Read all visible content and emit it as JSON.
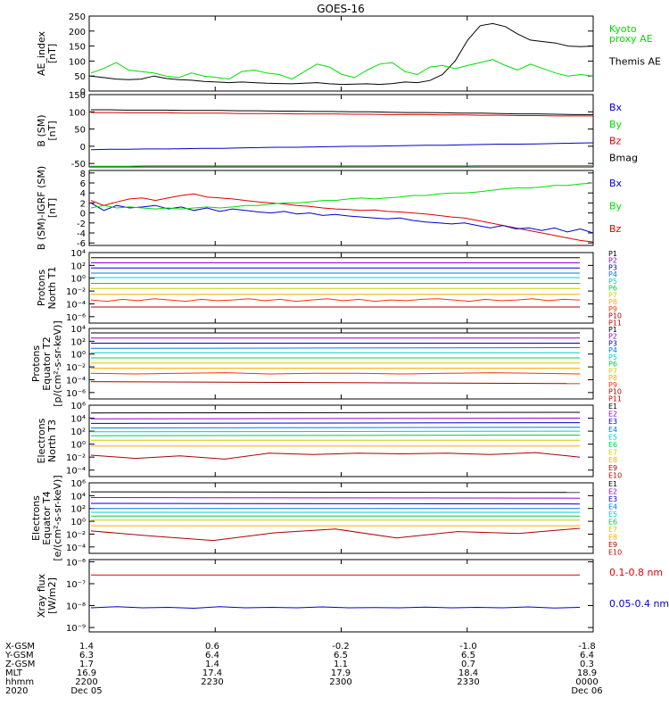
{
  "title": "GOES-16",
  "colors": {
    "black": "#000000",
    "green": "#00dd00",
    "blue": "#0000cc",
    "red": "#dd0000",
    "cyan": "#00bbee",
    "purple": "#9900cc",
    "navy": "#000080",
    "teal": "#00cccc",
    "lime": "#66ee00",
    "yellow": "#eecc00",
    "orange": "#ff9900",
    "darkred": "#aa0000"
  },
  "chart_data": [
    {
      "type": "line",
      "id": "ae",
      "ylabel": "AE_index\n[nT]",
      "yticks": [
        "250",
        "200",
        "150",
        "100",
        "50",
        "0"
      ],
      "ylim": [
        0,
        250
      ],
      "legend": [
        {
          "name": "Kyoto\nproxy AE",
          "color": "#00dd00"
        },
        {
          "name": "Themis AE",
          "color": "#000000"
        }
      ],
      "series": [
        {
          "name": "Themis AE",
          "color": "#000000",
          "values": [
            50,
            45,
            40,
            38,
            40,
            50,
            42,
            38,
            36,
            32,
            30,
            28,
            30,
            28,
            26,
            25,
            24,
            26,
            28,
            24,
            22,
            23,
            24,
            22,
            25,
            30,
            28,
            35,
            55,
            100,
            170,
            218,
            225,
            215,
            190,
            170,
            165,
            160,
            150,
            148,
            150
          ]
        },
        {
          "name": "Kyoto proxy AE",
          "color": "#00dd00",
          "values": [
            60,
            75,
            95,
            70,
            65,
            60,
            50,
            45,
            60,
            50,
            45,
            40,
            65,
            70,
            60,
            55,
            40,
            65,
            90,
            80,
            55,
            45,
            70,
            90,
            95,
            65,
            55,
            80,
            85,
            75,
            85,
            95,
            105,
            85,
            70,
            90,
            75,
            60,
            50,
            55,
            50
          ]
        }
      ]
    },
    {
      "type": "line",
      "id": "bsm",
      "ylabel": "B (SM)\n[nT]",
      "yticks": [
        "150",
        "100",
        "50",
        "0",
        "-50"
      ],
      "ylim": [
        -60,
        150
      ],
      "legend": [
        {
          "name": "Bx",
          "color": "#0000cc"
        },
        {
          "name": "By",
          "color": "#00dd00"
        },
        {
          "name": "Bz",
          "color": "#dd0000"
        },
        {
          "name": "Bmag",
          "color": "#000000"
        }
      ],
      "series": [
        {
          "name": "Bmag",
          "color": "#000000",
          "values": [
            106,
            106,
            105,
            105,
            105,
            104,
            104,
            104,
            103,
            103,
            102,
            102,
            101,
            101,
            100,
            100,
            99,
            98,
            98,
            97,
            96,
            96,
            95,
            94,
            94,
            93,
            92,
            92
          ]
        },
        {
          "name": "Bz",
          "color": "#dd0000",
          "values": [
            98,
            98,
            97,
            97,
            97,
            96,
            96,
            96,
            95,
            95,
            95,
            94,
            94,
            94,
            93,
            93,
            92,
            92,
            92,
            91,
            91,
            90,
            90,
            89,
            89,
            88,
            88,
            88
          ]
        },
        {
          "name": "Bx",
          "color": "#0000cc",
          "values": [
            -10,
            -9,
            -9,
            -8,
            -8,
            -7,
            -6,
            -6,
            -5,
            -4,
            -3,
            -3,
            -2,
            -1,
            0,
            0,
            1,
            2,
            3,
            3,
            4,
            5,
            6,
            6,
            7,
            8,
            9,
            10
          ]
        },
        {
          "name": "By",
          "color": "#00dd00",
          "values": [
            -58,
            -58,
            -58,
            -57,
            -57,
            -57,
            -57,
            -57,
            -57,
            -57,
            -57,
            -57,
            -57,
            -57,
            -57,
            -57,
            -57,
            -57,
            -57,
            -57,
            -57,
            -56,
            -56,
            -56,
            -56,
            -56,
            -56,
            -56
          ]
        }
      ]
    },
    {
      "type": "line",
      "id": "bdiff",
      "ylabel": "B (SM)-IGRF (SM)\n[nT]",
      "yticks": [
        "8",
        "6",
        "4",
        "2",
        "0",
        "-2",
        "-4",
        "-6"
      ],
      "ylim": [
        -6.5,
        8.5
      ],
      "legend": [
        {
          "name": "Bx",
          "color": "#0000cc"
        },
        {
          "name": "By",
          "color": "#00dd00"
        },
        {
          "name": "Bz",
          "color": "#dd0000"
        }
      ],
      "series": [
        {
          "name": "Bz",
          "color": "#dd0000",
          "values": [
            2.5,
            1.5,
            2.2,
            2.8,
            3.0,
            2.5,
            3.0,
            3.5,
            3.8,
            3.2,
            3.0,
            2.8,
            2.5,
            2.2,
            2.0,
            1.8,
            1.5,
            1.3,
            1.0,
            0.8,
            0.7,
            0.5,
            0.6,
            0.3,
            0.2,
            0.0,
            -0.2,
            -0.5,
            -0.8,
            -1.0,
            -1.5,
            -2.0,
            -2.5,
            -3.0,
            -3.5,
            -4.0,
            -4.5,
            -5.0,
            -5.5,
            -5.8
          ]
        },
        {
          "name": "Bx",
          "color": "#0000cc",
          "values": [
            2.0,
            0.5,
            1.5,
            1.0,
            1.2,
            1.5,
            0.8,
            1.2,
            0.5,
            1.0,
            0.3,
            0.8,
            0.5,
            0.2,
            0.0,
            0.3,
            -0.2,
            0.0,
            -0.5,
            -0.3,
            -0.6,
            -0.8,
            -1.0,
            -1.2,
            -1.0,
            -1.5,
            -1.8,
            -2.0,
            -2.2,
            -2.0,
            -2.5,
            -3.0,
            -2.5,
            -3.2,
            -3.0,
            -3.5,
            -3.0,
            -3.8,
            -3.2,
            -4.0
          ]
        },
        {
          "name": "By",
          "color": "#00dd00",
          "values": [
            1.0,
            1.5,
            1.0,
            1.2,
            1.0,
            0.8,
            1.0,
            0.8,
            1.0,
            1.2,
            1.0,
            1.2,
            1.5,
            1.5,
            1.8,
            2.0,
            2.0,
            2.2,
            2.5,
            2.5,
            2.8,
            3.0,
            2.8,
            3.0,
            3.2,
            3.5,
            3.5,
            3.8,
            4.0,
            4.0,
            4.2,
            4.5,
            4.8,
            5.0,
            5.0,
            5.2,
            5.5,
            5.5,
            5.8,
            6.0
          ]
        }
      ]
    },
    {
      "type": "line",
      "id": "p_north",
      "log": true,
      "ylabel": "Protons\nNorth T1",
      "yticks": [
        "10⁴",
        "10²",
        "10⁰",
        "10⁻²",
        "10⁻⁴",
        "10⁻⁶"
      ],
      "ylim": [
        -7,
        4
      ],
      "legend": [
        "P1",
        "P2",
        "P3",
        "P4",
        "P5",
        "P6",
        "P7",
        "P8",
        "P9",
        "P10",
        "P11"
      ],
      "series": [
        {
          "name": "P1",
          "color": "#000000",
          "log_values": [
            3.2,
            3.2
          ]
        },
        {
          "name": "P2",
          "color": "#9900cc",
          "log_values": [
            2.4,
            2.4
          ]
        },
        {
          "name": "P3",
          "color": "#0000cc",
          "log_values": [
            1.6,
            1.6
          ]
        },
        {
          "name": "P4",
          "color": "#0077ee",
          "log_values": [
            0.8,
            0.8
          ]
        },
        {
          "name": "P5",
          "color": "#00cccc",
          "log_values": [
            0.1,
            0.1
          ]
        },
        {
          "name": "P6",
          "color": "#00cc44",
          "log_values": [
            -0.8,
            -0.8
          ]
        },
        {
          "name": "P7",
          "color": "#cccc00",
          "log_values": [
            -1.6,
            -1.6
          ]
        },
        {
          "name": "P8",
          "color": "#ffaa00",
          "log_values": [
            -2.5,
            -2.5
          ]
        },
        {
          "name": "P9",
          "color": "#ff3300",
          "log_values": [
            -3.4,
            -3.6,
            -3.3,
            -3.5,
            -3.2,
            -3.4,
            -3.6,
            -3.3,
            -3.5,
            -3.4,
            -3.2,
            -3.5,
            -3.3,
            -3.6,
            -3.4,
            -3.2,
            -3.5,
            -3.3,
            -3.6,
            -3.4,
            -3.5,
            -3.3,
            -3.2,
            -3.4,
            -3.6,
            -3.3,
            -3.5,
            -3.4,
            -3.2,
            -3.5,
            -3.3,
            -3.4
          ]
        },
        {
          "name": "P10",
          "color": "#aa0000",
          "log_values": [
            -4.5,
            -4.5
          ]
        }
      ]
    },
    {
      "type": "line",
      "id": "p_equator",
      "log": true,
      "ylabel": "Protons\nEquator T2\n[p/(cm²-s-sr-keV)]",
      "yticks": [
        "10⁴",
        "10²",
        "10⁰",
        "10⁻²",
        "10⁻⁴",
        "10⁻⁶"
      ],
      "ylim": [
        -7,
        4
      ],
      "legend": [
        "P1",
        "P2",
        "P3",
        "P4",
        "P5",
        "P6",
        "P7",
        "P8",
        "P9",
        "P10",
        "P11"
      ],
      "series": [
        {
          "name": "P1",
          "color": "#000000",
          "log_values": [
            3.3,
            3.3
          ]
        },
        {
          "name": "P2",
          "color": "#9900cc",
          "log_values": [
            2.5,
            2.5
          ]
        },
        {
          "name": "P3",
          "color": "#0000cc",
          "log_values": [
            1.7,
            1.7
          ]
        },
        {
          "name": "P4",
          "color": "#0077ee",
          "log_values": [
            0.9,
            1.0
          ]
        },
        {
          "name": "P5",
          "color": "#00cccc",
          "log_values": [
            0.2,
            0.2
          ]
        },
        {
          "name": "P6",
          "color": "#00cc44",
          "log_values": [
            -0.6,
            -0.6
          ]
        },
        {
          "name": "P7",
          "color": "#cccc00",
          "log_values": [
            -1.4,
            -1.4
          ]
        },
        {
          "name": "P8",
          "color": "#ffaa00",
          "log_values": [
            -2.2,
            -2.2
          ]
        },
        {
          "name": "P9",
          "color": "#ff3300",
          "log_values": [
            -3.0,
            -3.1,
            -3.0,
            -2.9,
            -3.1,
            -3.0,
            -3.0,
            -3.1,
            -3.0,
            -2.9,
            -3.0,
            -3.1
          ]
        },
        {
          "name": "P10",
          "color": "#aa0000",
          "log_values": [
            -4.3,
            -4.6
          ]
        }
      ]
    },
    {
      "type": "line",
      "id": "e_north",
      "log": true,
      "ylabel": "Electrons\nNorth T3",
      "yticks": [
        "10⁶",
        "10⁴",
        "10²",
        "10⁰",
        "10⁻²",
        "10⁻⁴"
      ],
      "ylim": [
        -5,
        6
      ],
      "legend": [
        "E1",
        "E2",
        "E3",
        "E4",
        "E5",
        "E6",
        "E7",
        "E8",
        "E9",
        "E10"
      ],
      "series": [
        {
          "name": "E1",
          "color": "#000000",
          "log_values": [
            4.8,
            4.9
          ]
        },
        {
          "name": "E2",
          "color": "#9900cc",
          "log_values": [
            3.9,
            4.0
          ]
        },
        {
          "name": "E3",
          "color": "#0000cc",
          "log_values": [
            3.2,
            3.3
          ]
        },
        {
          "name": "E4",
          "color": "#0077ee",
          "log_values": [
            2.5,
            2.6
          ]
        },
        {
          "name": "E5",
          "color": "#00cccc",
          "log_values": [
            1.9,
            2.0
          ]
        },
        {
          "name": "E6",
          "color": "#00cc44",
          "log_values": [
            1.3,
            1.4
          ]
        },
        {
          "name": "E7",
          "color": "#cccc00",
          "log_values": [
            0.6,
            0.6
          ]
        },
        {
          "name": "E8",
          "color": "#ffaa00",
          "log_values": [
            -0.3,
            -0.3
          ]
        },
        {
          "name": "E9",
          "color": "#aa0000",
          "log_values": [
            -1.7,
            -2.2,
            -1.8,
            -2.3,
            -1.4,
            -1.6,
            -1.4,
            -1.5,
            -1.4,
            -1.6,
            -1.3,
            -2.0
          ]
        }
      ]
    },
    {
      "type": "line",
      "id": "e_equator",
      "log": true,
      "ylabel": "Electrons\nEquator T4\n[e/(cm²-s-sr-keV)]",
      "yticks": [
        "10⁶",
        "10⁴",
        "10²",
        "10⁰",
        "10⁻²",
        "10⁻⁴"
      ],
      "ylim": [
        -5,
        6
      ],
      "legend": [
        "E1",
        "E2",
        "E3",
        "E4",
        "E5",
        "E6",
        "E7",
        "E8",
        "E9",
        "E10"
      ],
      "series": [
        {
          "name": "E1",
          "color": "#000000",
          "log_values": [
            4.6,
            4.5
          ]
        },
        {
          "name": "E2",
          "color": "#9900cc",
          "log_values": [
            3.7,
            3.6
          ]
        },
        {
          "name": "E3",
          "color": "#0000cc",
          "log_values": [
            2.8,
            2.7
          ]
        },
        {
          "name": "E4",
          "color": "#0077ee",
          "log_values": [
            2.0,
            2.0
          ]
        },
        {
          "name": "E5",
          "color": "#00cccc",
          "log_values": [
            1.4,
            1.4
          ]
        },
        {
          "name": "E6",
          "color": "#00cc44",
          "log_values": [
            0.8,
            0.8
          ]
        },
        {
          "name": "E7",
          "color": "#cccc00",
          "log_values": [
            0.2,
            0.2
          ]
        },
        {
          "name": "E8",
          "color": "#ffaa00",
          "log_values": [
            -0.7,
            -0.7
          ]
        },
        {
          "name": "E9",
          "color": "#aa0000",
          "log_values": [
            -1.5,
            -2.3,
            -3.0,
            -1.8,
            -1.2,
            -2.6,
            -1.6,
            -1.9,
            -1.1
          ]
        }
      ]
    },
    {
      "type": "line",
      "id": "xray",
      "log": true,
      "ylabel": "Xray flux\n[W/m2]",
      "yticks": [
        "10⁻⁶",
        "10⁻⁷",
        "10⁻⁸",
        "10⁻⁹"
      ],
      "ylim": [
        -9.2,
        -5.9
      ],
      "legend": [
        {
          "name": "0.1-0.8 nm",
          "color": "#dd0000"
        },
        {
          "name": "0.05-0.4 nm",
          "color": "#0000cc"
        }
      ],
      "series": [
        {
          "name": "0.1-0.8 nm",
          "color": "#dd0000",
          "log_values": [
            -6.6,
            -6.6,
            -6.6,
            -6.6,
            -6.6,
            -6.6,
            -6.6,
            -6.6,
            -6.6,
            -6.6
          ]
        },
        {
          "name": "0.05-0.4 nm",
          "color": "#0000cc",
          "log_values": [
            -8.1,
            -8.05,
            -8.1,
            -8.08,
            -8.12,
            -8.05,
            -8.1,
            -8.08,
            -8.1,
            -8.06,
            -8.1,
            -8.09,
            -8.1,
            -8.07,
            -8.1,
            -8.08,
            -8.1,
            -8.06,
            -8.11,
            -8.08
          ]
        }
      ]
    }
  ],
  "ephemeris": {
    "labels": [
      "X-GSM",
      "Y-GSM",
      "Z-GSM",
      "MLT",
      "hhmm",
      "2020"
    ],
    "columns": [
      [
        "1.4",
        "6.3",
        "1.7",
        "16.9",
        "2200",
        "Dec 05"
      ],
      [
        "0.6",
        "6.4",
        "1.4",
        "17.4",
        "2230",
        ""
      ],
      [
        "-0.2",
        "6.5",
        "1.1",
        "17.9",
        "2300",
        ""
      ],
      [
        "-1.0",
        "6.5",
        "0.7",
        "18.4",
        "2330",
        ""
      ],
      [
        "-1.8",
        "6.4",
        "0.3",
        "18.9",
        "0000",
        "Dec 06"
      ]
    ]
  }
}
